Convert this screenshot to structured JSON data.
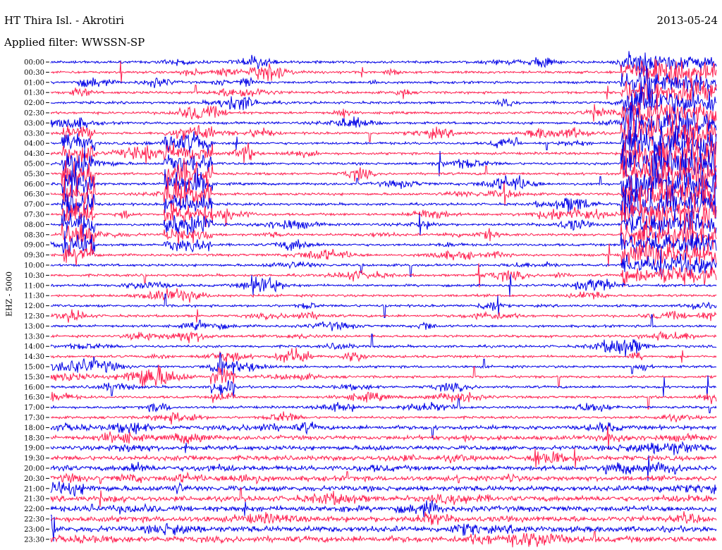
{
  "header": {
    "station": "HT Thira Isl. - Akrotiri",
    "filter": "Applied filter: WWSSN-SP",
    "date": "2013-05-24",
    "channel": "EHZ - 5000"
  },
  "colors": {
    "trace_a": "#0000e6",
    "trace_b": "#ff1f4f",
    "text": "#000000",
    "background": "#ffffff"
  },
  "chart_data": {
    "type": "line",
    "title": "HT Thira Isl. - Akrotiri",
    "subtitle": "Applied filter: WWSSN-SP",
    "ylabel": "EHZ - 5000",
    "date": "2013-05-24",
    "ytick_labels": [
      "00:00",
      "00:30",
      "01:00",
      "01:30",
      "02:00",
      "02:30",
      "03:00",
      "03:30",
      "04:00",
      "04:30",
      "05:00",
      "05:30",
      "06:00",
      "06:30",
      "07:00",
      "07:30",
      "08:00",
      "08:30",
      "09:00",
      "09:30",
      "10:00",
      "10:30",
      "11:00",
      "11:30",
      "12:00",
      "12:30",
      "13:00",
      "13:30",
      "14:00",
      "14:30",
      "15:00",
      "15:30",
      "16:00",
      "16:30",
      "17:00",
      "17:30",
      "18:00",
      "18:30",
      "19:00",
      "19:30",
      "20:00",
      "20:30",
      "21:00",
      "21:30",
      "22:00",
      "22:30",
      "23:00",
      "23:30"
    ],
    "series": [
      {
        "values": [
          0,
          0.25,
          0.5
        ]
      },
      {
        "values": [
          0,
          0.25,
          0.5
        ]
      }
    ],
    "x_range_minutes": [
      0,
      30
    ],
    "event_bursts": [
      {
        "start_label": "03:30",
        "end_label": "09:30",
        "x_minutes": [
          0.5,
          2.0
        ],
        "scale": 5
      },
      {
        "start_label": "03:30",
        "end_label": "09:00",
        "x_minutes": [
          5.1,
          7.3
        ],
        "scale": 4
      },
      {
        "start_label": "00:00",
        "end_label": "10:30",
        "x_minutes": [
          25.7,
          30.0
        ],
        "scale": 6
      },
      {
        "start_label": "15:00",
        "end_label": "16:30",
        "x_minutes": [
          7.2,
          8.3
        ],
        "scale": 3
      }
    ],
    "grid": false,
    "legend": "none"
  }
}
